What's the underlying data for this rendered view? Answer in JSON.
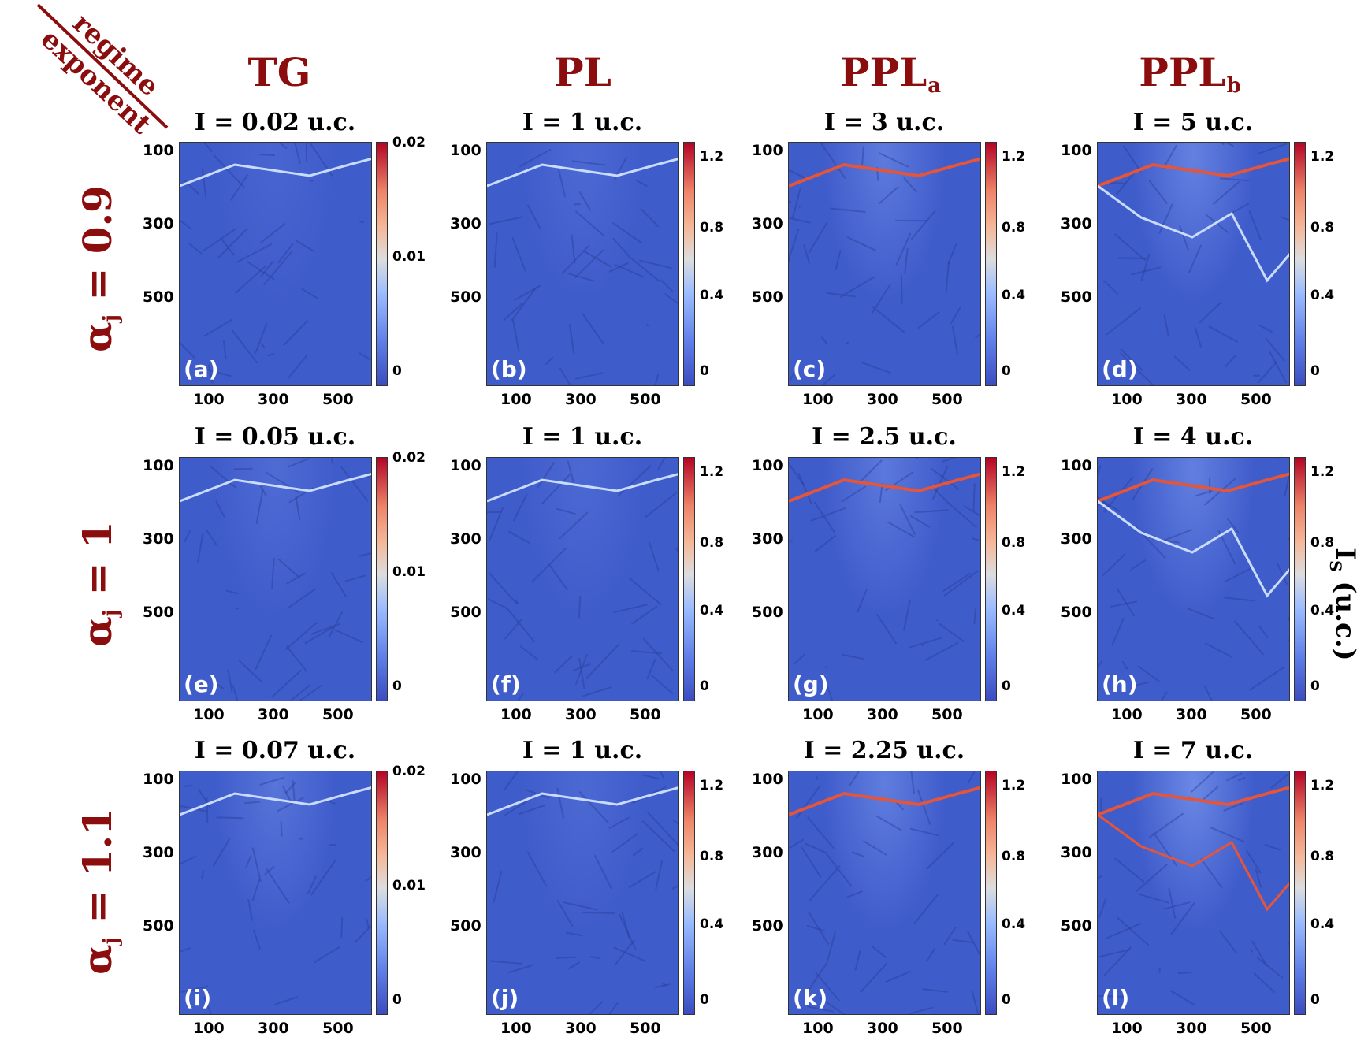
{
  "corner": {
    "top": "regime",
    "bottom": "exponent"
  },
  "columns": [
    {
      "main": "TG",
      "sub": ""
    },
    {
      "main": "PL",
      "sub": ""
    },
    {
      "main": "PPL",
      "sub": "a"
    },
    {
      "main": "PPL",
      "sub": "b"
    }
  ],
  "rows": [
    {
      "main": "α",
      "sub": "j",
      "rest": " = 0.9"
    },
    {
      "main": "α",
      "sub": "j",
      "rest": " = 1"
    },
    {
      "main": "α",
      "sub": "j",
      "rest": " = 1.1"
    }
  ],
  "colorbar_axis_label": {
    "main": "I",
    "sub": "S",
    "rest": " (u.c.)"
  },
  "axis_ticks": {
    "x": [
      "100",
      "300",
      "500"
    ],
    "y": [
      "100",
      "300",
      "500"
    ]
  },
  "colorbar_ticks_small": [
    "0.02",
    "0.01",
    "0"
  ],
  "colorbar_ticks_large": [
    "1.2",
    "0.8",
    "0.4",
    "0"
  ],
  "panels": [
    {
      "label": "(a)",
      "title": "I = 0.02 u.c.",
      "scale": "small",
      "intensity": 0.2
    },
    {
      "label": "(b)",
      "title": "I = 1 u.c.",
      "scale": "large",
      "intensity": 0.3
    },
    {
      "label": "(c)",
      "title": "I = 3 u.c.",
      "scale": "large",
      "intensity": 0.7
    },
    {
      "label": "(d)",
      "title": "I = 5 u.c.",
      "scale": "large",
      "intensity": 0.85
    },
    {
      "label": "(e)",
      "title": "I = 0.05 u.c.",
      "scale": "small",
      "intensity": 0.35
    },
    {
      "label": "(f)",
      "title": "I = 1 u.c.",
      "scale": "large",
      "intensity": 0.3
    },
    {
      "label": "(g)",
      "title": "I = 2.5 u.c.",
      "scale": "large",
      "intensity": 0.65
    },
    {
      "label": "(h)",
      "title": "I = 4 u.c.",
      "scale": "large",
      "intensity": 0.8
    },
    {
      "label": "(i)",
      "title": "I = 0.07 u.c.",
      "scale": "small",
      "intensity": 0.55
    },
    {
      "label": "(j)",
      "title": "I = 1 u.c.",
      "scale": "large",
      "intensity": 0.3
    },
    {
      "label": "(k)",
      "title": "I = 2.25 u.c.",
      "scale": "large",
      "intensity": 0.75
    },
    {
      "label": "(l)",
      "title": "I = 7 u.c.",
      "scale": "large",
      "intensity": 1.0
    }
  ],
  "colors": {
    "heading": "#8b0d0d",
    "background_blue": "#3f5ccb",
    "hot": "#c8141e"
  }
}
